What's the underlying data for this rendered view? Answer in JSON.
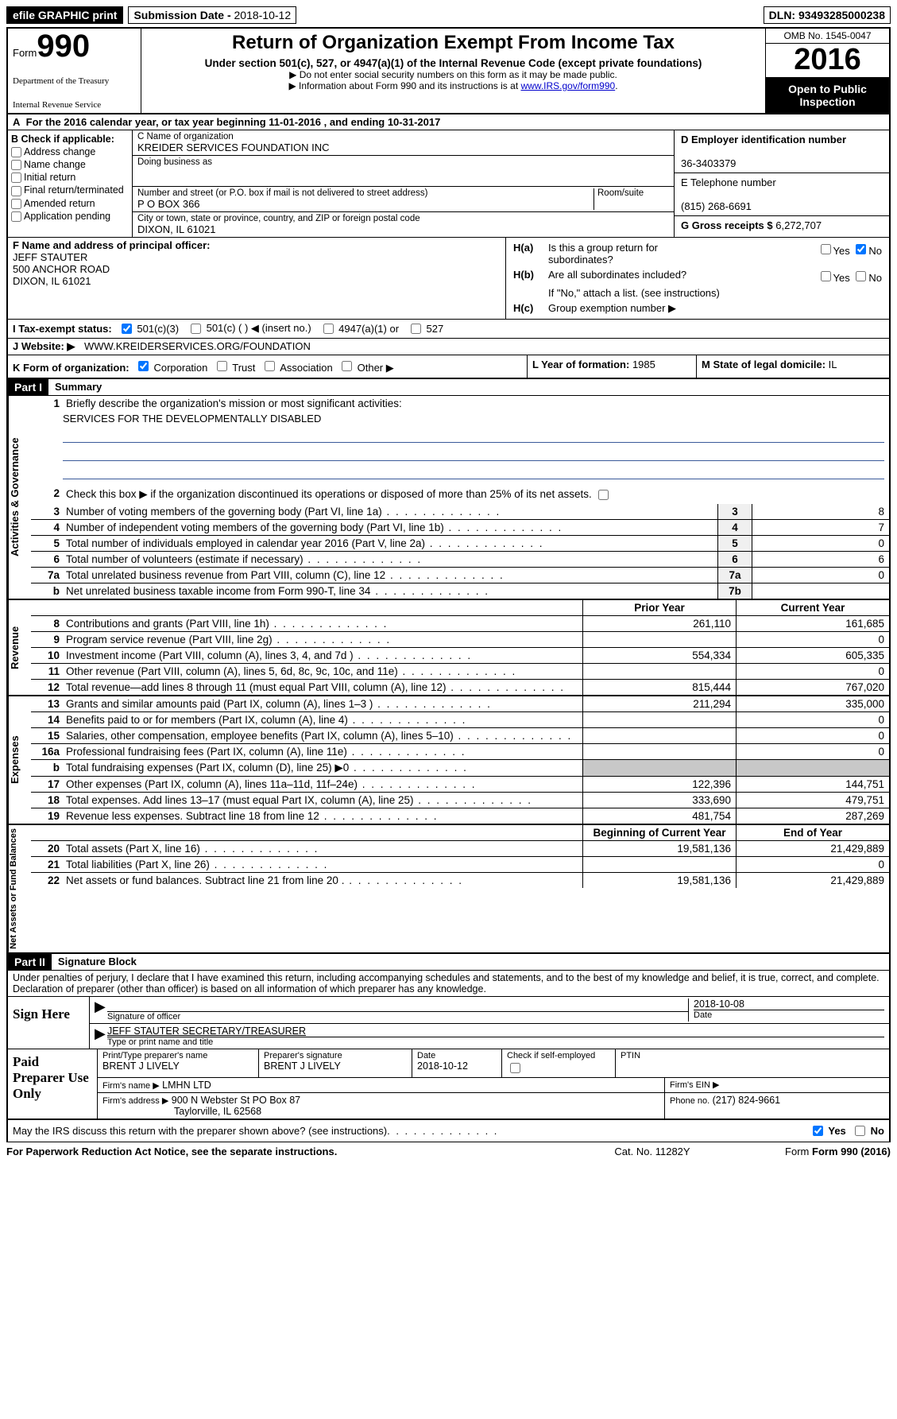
{
  "topbar": {
    "efile": "efile GRAPHIC print",
    "submission_label": "Submission Date -",
    "submission_date": "2018-10-12",
    "dln_label": "DLN:",
    "dln": "93493285000238"
  },
  "header": {
    "form_word": "Form",
    "form_num": "990",
    "dept1": "Department of the Treasury",
    "dept2": "Internal Revenue Service",
    "title": "Return of Organization Exempt From Income Tax",
    "sub": "Under section 501(c), 527, or 4947(a)(1) of the Internal Revenue Code (except private foundations)",
    "note1": "▶ Do not enter social security numbers on this form as it may be made public.",
    "note2_pre": "▶ Information about Form 990 and its instructions is at ",
    "note2_link": "www.IRS.gov/form990",
    "omb": "OMB No. 1545-0047",
    "year": "2016",
    "open1": "Open to Public",
    "open2": "Inspection"
  },
  "rowA": {
    "label": "A",
    "text_pre": "For the 2016 calendar year, or tax year beginning ",
    "begin": "11-01-2016",
    "mid": " , and ending ",
    "end": "10-31-2017"
  },
  "B": {
    "label": "B Check if applicable:",
    "items": [
      "Address change",
      "Name change",
      "Initial return",
      "Final return/terminated",
      "Amended return",
      "Application pending"
    ]
  },
  "C": {
    "name_label": "C Name of organization",
    "name": "KREIDER SERVICES FOUNDATION INC",
    "dba_label": "Doing business as",
    "street_label": "Number and street (or P.O. box if mail is not delivered to street address)",
    "suite_label": "Room/suite",
    "street": "P O BOX 366",
    "city_label": "City or town, state or province, country, and ZIP or foreign postal code",
    "city": "DIXON, IL  61021"
  },
  "D": {
    "ein_label": "D Employer identification number",
    "ein": "36-3403379",
    "phone_label": "E Telephone number",
    "phone": "(815) 268-6691",
    "gross_label": "G Gross receipts $",
    "gross": "6,272,707"
  },
  "F": {
    "label": "F  Name and address of principal officer:",
    "name": "JEFF STAUTER",
    "addr1": "500 ANCHOR ROAD",
    "addr2": "DIXON, IL  61021"
  },
  "H": {
    "a_label": "H(a)",
    "a_text1": "Is this a group return for",
    "a_text2": "subordinates?",
    "b_label": "H(b)",
    "b_text": "Are all subordinates included?",
    "note": "If \"No,\" attach a list. (see instructions)",
    "c_label": "H(c)",
    "c_text": "Group exemption number ▶",
    "yes": "Yes",
    "no": "No"
  },
  "I": {
    "label": "I  Tax-exempt status:",
    "o1": "501(c)(3)",
    "o2": "501(c) (   ) ◀ (insert no.)",
    "o3": "4947(a)(1) or",
    "o4": "527"
  },
  "J": {
    "label": "J  Website: ▶",
    "url": "WWW.KREIDERSERVICES.ORG/FOUNDATION"
  },
  "K": {
    "label": "K Form of organization:",
    "o1": "Corporation",
    "o2": "Trust",
    "o3": "Association",
    "o4": "Other ▶"
  },
  "L": {
    "label": "L Year of formation:",
    "val": "1985"
  },
  "M": {
    "label": "M State of legal domicile:",
    "val": "IL"
  },
  "part1": {
    "header": "Part I",
    "title": "Summary",
    "line1_label": "1",
    "line1_text": "Briefly describe the organization's mission or most significant activities:",
    "mission": "SERVICES FOR THE DEVELOPMENTALLY DISABLED",
    "line2_label": "2",
    "line2_text": "Check this box ▶         if the organization discontinued its operations or disposed of more than 25% of its net assets.",
    "gov_rows": [
      {
        "n": "3",
        "t": "Number of voting members of the governing body (Part VI, line 1a)",
        "c": "3",
        "v": "8"
      },
      {
        "n": "4",
        "t": "Number of independent voting members of the governing body (Part VI, line 1b)",
        "c": "4",
        "v": "7"
      },
      {
        "n": "5",
        "t": "Total number of individuals employed in calendar year 2016 (Part V, line 2a)",
        "c": "5",
        "v": "0"
      },
      {
        "n": "6",
        "t": "Total number of volunteers (estimate if necessary)",
        "c": "6",
        "v": "6"
      },
      {
        "n": "7a",
        "t": "Total unrelated business revenue from Part VIII, column (C), line 12",
        "c": "7a",
        "v": "0"
      },
      {
        "n": "b",
        "t": "Net unrelated business taxable income from Form 990-T, line 34",
        "c": "7b",
        "v": ""
      }
    ],
    "col_prior": "Prior Year",
    "col_curr": "Current Year",
    "rev_rows": [
      {
        "n": "8",
        "t": "Contributions and grants (Part VIII, line 1h)",
        "p": "261,110",
        "c": "161,685"
      },
      {
        "n": "9",
        "t": "Program service revenue (Part VIII, line 2g)",
        "p": "",
        "c": "0"
      },
      {
        "n": "10",
        "t": "Investment income (Part VIII, column (A), lines 3, 4, and 7d )",
        "p": "554,334",
        "c": "605,335"
      },
      {
        "n": "11",
        "t": "Other revenue (Part VIII, column (A), lines 5, 6d, 8c, 9c, 10c, and 11e)",
        "p": "",
        "c": "0"
      },
      {
        "n": "12",
        "t": "Total revenue—add lines 8 through 11 (must equal Part VIII, column (A), line 12)",
        "p": "815,444",
        "c": "767,020"
      }
    ],
    "exp_rows": [
      {
        "n": "13",
        "t": "Grants and similar amounts paid (Part IX, column (A), lines 1–3 )",
        "p": "211,294",
        "c": "335,000"
      },
      {
        "n": "14",
        "t": "Benefits paid to or for members (Part IX, column (A), line 4)",
        "p": "",
        "c": "0"
      },
      {
        "n": "15",
        "t": "Salaries, other compensation, employee benefits (Part IX, column (A), lines 5–10)",
        "p": "",
        "c": "0"
      },
      {
        "n": "16a",
        "t": "Professional fundraising fees (Part IX, column (A), line 11e)",
        "p": "",
        "c": "0"
      },
      {
        "n": "b",
        "t": "Total fundraising expenses (Part IX, column (D), line 25) ▶0",
        "p": "",
        "c": "",
        "shaded": true
      },
      {
        "n": "17",
        "t": "Other expenses (Part IX, column (A), lines 11a–11d, 11f–24e)",
        "p": "122,396",
        "c": "144,751"
      },
      {
        "n": "18",
        "t": "Total expenses. Add lines 13–17 (must equal Part IX, column (A), line 25)",
        "p": "333,690",
        "c": "479,751"
      },
      {
        "n": "19",
        "t": "Revenue less expenses. Subtract line 18 from line 12",
        "p": "481,754",
        "c": "287,269"
      }
    ],
    "col_begin": "Beginning of Current Year",
    "col_end": "End of Year",
    "net_rows": [
      {
        "n": "20",
        "t": "Total assets (Part X, line 16)",
        "p": "19,581,136",
        "c": "21,429,889"
      },
      {
        "n": "21",
        "t": "Total liabilities (Part X, line 26)",
        "p": "",
        "c": "0"
      },
      {
        "n": "22",
        "t": "Net assets or fund balances. Subtract line 21 from line 20 .",
        "p": "19,581,136",
        "c": "21,429,889"
      }
    ],
    "side_gov": "Activities & Governance",
    "side_rev": "Revenue",
    "side_exp": "Expenses",
    "side_net": "Net Assets or Fund Balances"
  },
  "part2": {
    "header": "Part II",
    "title": "Signature Block",
    "intro": "Under penalties of perjury, I declare that I have examined this return, including accompanying schedules and statements, and to the best of my knowledge and belief, it is true, correct, and complete. Declaration of preparer (other than officer) is based on all information of which preparer has any knowledge.",
    "sign_here": "Sign Here",
    "sig_officer_label": "Signature of officer",
    "sig_date": "2018-10-08",
    "sig_date_label": "Date",
    "sig_name": "JEFF STAUTER SECRETARY/TREASURER",
    "sig_name_label": "Type or print name and title",
    "paid_label": "Paid Preparer Use Only",
    "prep_name_label": "Print/Type preparer's name",
    "prep_name": "BRENT J LIVELY",
    "prep_sig_label": "Preparer's signature",
    "prep_sig": "BRENT J LIVELY",
    "prep_date_label": "Date",
    "prep_date": "2018-10-12",
    "check_self": "Check        if self-employed",
    "ptin": "PTIN",
    "firm_name_label": "Firm's name    ▶",
    "firm_name": "LMHN LTD",
    "firm_ein_label": "Firm's EIN ▶",
    "firm_addr_label": "Firm's address ▶",
    "firm_addr1": "900 N Webster St PO Box 87",
    "firm_addr2": "Taylorville, IL  62568",
    "firm_phone_label": "Phone no.",
    "firm_phone": "(217) 824-9661",
    "discuss": "May the IRS discuss this return with the preparer shown above? (see instructions)",
    "yes": "Yes",
    "no": "No"
  },
  "footer": {
    "paperwork": "For Paperwork Reduction Act Notice, see the separate instructions.",
    "cat": "Cat. No. 11282Y",
    "form": "Form 990 (2016)"
  }
}
